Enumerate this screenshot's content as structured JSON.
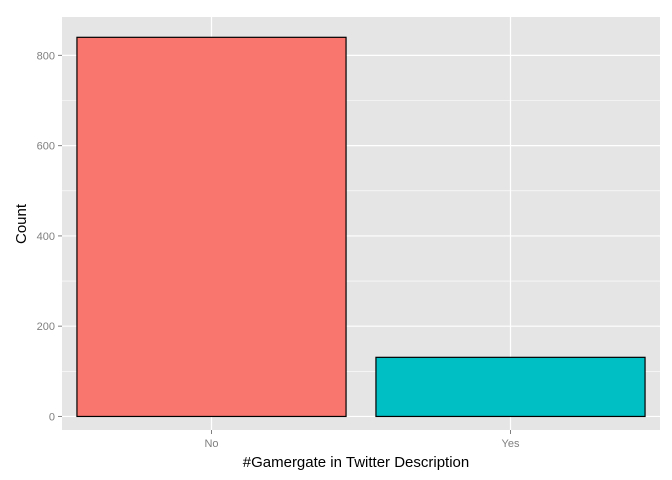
{
  "chart_data": {
    "type": "bar",
    "title": "",
    "xlabel": "#Gamergate in Twitter Description",
    "ylabel": "Count",
    "categories": [
      "No",
      "Yes"
    ],
    "values": [
      840,
      131
    ],
    "colors": [
      "#F8766D",
      "#00BFC4"
    ],
    "bar_outline": "#000000",
    "panel_background": "#E5E5E5",
    "grid_color": "#FFFFFF",
    "grid": true,
    "legend": "none",
    "ylim": [
      -30,
      885
    ],
    "yticks": [
      0,
      200,
      400,
      600,
      800
    ],
    "ytick_labels": [
      "0",
      "200",
      "400",
      "600",
      "800"
    ]
  }
}
